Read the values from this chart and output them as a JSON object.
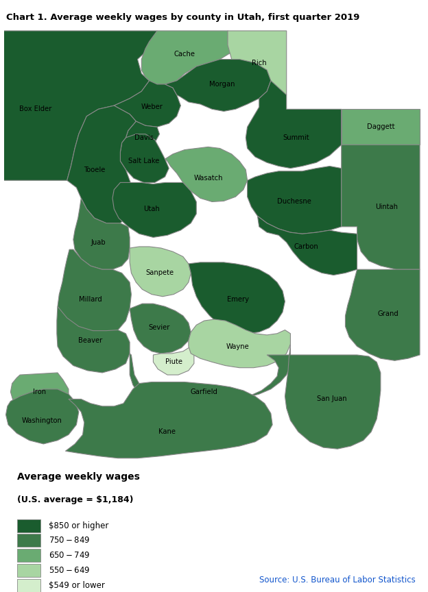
{
  "title": "Chart 1. Average weekly wages by county in Utah, first quarter 2019",
  "legend_title": "Average weekly wages",
  "legend_subtitle": "(U.S. average = $1,184)",
  "legend_labels": [
    "$850 or higher",
    "$750 - $849",
    "$650 - $749",
    "$550 - $649",
    "$549 or lower"
  ],
  "legend_colors": [
    "#1a5c2e",
    "#3d7a4a",
    "#6aab72",
    "#a8d5a2",
    "#d4eecc"
  ],
  "source_text": "Source: U.S. Bureau of Labor Statistics",
  "source_color": "#1155cc",
  "county_categories": {
    "Box Elder": 0,
    "Cache": 2,
    "Rich": 3,
    "Weber": 0,
    "Davis": 0,
    "Morgan": 0,
    "Salt Lake": 0,
    "Tooele": 0,
    "Summit": 0,
    "Wasatch": 2,
    "Utah": 0,
    "Duchesne": 0,
    "Daggett": 2,
    "Uintah": 1,
    "Juab": 1,
    "Carbon": 0,
    "Sanpete": 3,
    "Millard": 1,
    "Emery": 0,
    "Grand": 1,
    "Sevier": 1,
    "Beaver": 1,
    "Piute": 4,
    "Wayne": 3,
    "Iron": 2,
    "Garfield": 1,
    "San Juan": 1,
    "Washington": 1,
    "Kane": 1
  },
  "background_color": "#ffffff",
  "map_edge_color": "#888888",
  "map_edge_width": 0.8
}
